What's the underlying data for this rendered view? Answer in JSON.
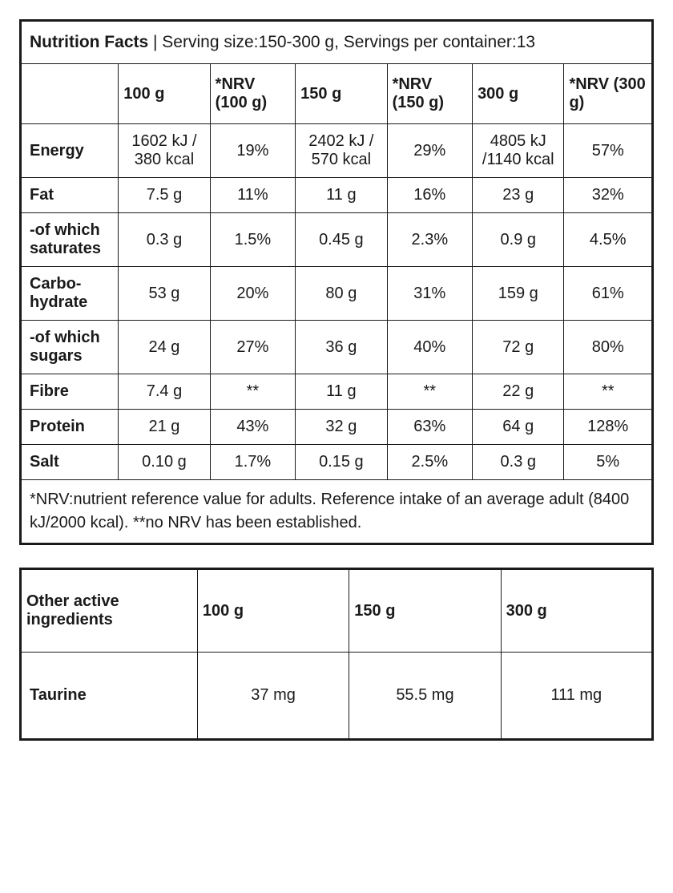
{
  "main": {
    "title_bold": "Nutrition Facts",
    "title_rest": " | Serving size:150-300 g, Servings per container:13",
    "headers": [
      "",
      "100 g",
      "*NRV (100 g)",
      "150 g",
      "*NRV (150 g)",
      "300 g",
      "*NRV (300 g)"
    ],
    "rows": [
      {
        "label": "Energy",
        "v": [
          "1602 kJ / 380 kcal",
          "19%",
          "2402 kJ / 570 kcal",
          "29%",
          "4805 kJ /1140 kcal",
          "57%"
        ]
      },
      {
        "label": "Fat",
        "v": [
          "7.5 g",
          "11%",
          "11 g",
          "16%",
          "23 g",
          "32%"
        ]
      },
      {
        "label": " -of which saturates",
        "v": [
          "0.3 g",
          "1.5%",
          "0.45 g",
          "2.3%",
          "0.9 g",
          "4.5%"
        ]
      },
      {
        "label": "Carbo­hydrate",
        "v": [
          "53 g",
          "20%",
          "80 g",
          "31%",
          "159 g",
          "61%"
        ]
      },
      {
        "label": "-of which sugars",
        "v": [
          "24 g",
          "27%",
          "36 g",
          "40%",
          "72 g",
          "80%"
        ]
      },
      {
        "label": "Fibre",
        "v": [
          "7.4 g",
          "**",
          "11 g",
          "**",
          "22 g",
          "**"
        ]
      },
      {
        "label": "Protein",
        "v": [
          "21 g",
          "43%",
          "32 g",
          "63%",
          "64 g",
          "128%"
        ]
      },
      {
        "label": "Salt",
        "v": [
          "0.10 g",
          "1.7%",
          "0.15 g",
          "2.5%",
          "0.3 g",
          "5%"
        ]
      }
    ],
    "footnote": "*NRV:nutrient reference value for adults. Reference intake of an average adult (8400 kJ/2000 kcal). **no NRV has been established."
  },
  "secondary": {
    "headers": [
      "Other active ingredients",
      "100 g",
      "150 g",
      "300 g"
    ],
    "rows": [
      {
        "label": "Taurine",
        "v": [
          "37 mg",
          "55.5 mg",
          "111 mg"
        ]
      }
    ]
  }
}
